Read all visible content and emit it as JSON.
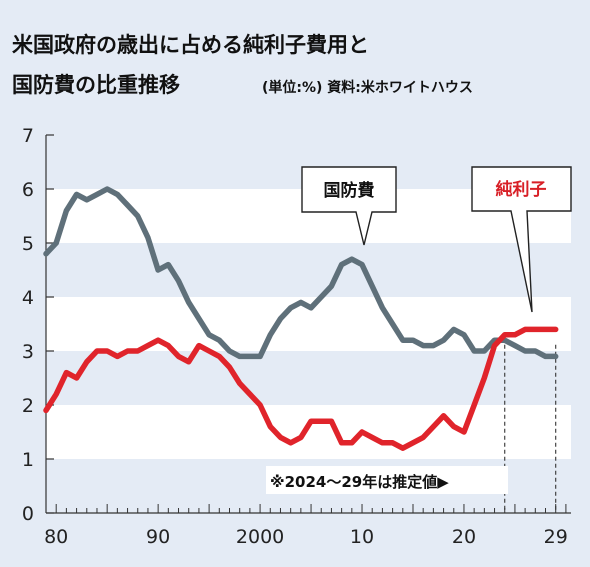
{
  "header": {
    "title_line1": "米国政府の歳出に占める純利子費用と",
    "title_line2": "国防費の比重推移",
    "unit_source": "(単位:%) 資料:米ホワイトハウス"
  },
  "note": "※2024～29年は推定値▶",
  "colors": {
    "background": "#e4ebf5",
    "band": "#ffffff",
    "defense": "#5f707a",
    "interest": "#e0242b",
    "label_red": "#d81f26"
  },
  "chart_data": {
    "type": "line",
    "x_tick_labels": [
      "80",
      "90",
      "2000",
      "10",
      "20",
      "29"
    ],
    "x_tick_values": [
      1980,
      1990,
      2000,
      2010,
      2020,
      2029
    ],
    "xlim": [
      1979,
      2030.5
    ],
    "y_ticks": [
      0,
      1,
      2,
      3,
      4,
      5,
      6,
      7
    ],
    "ylim": [
      0,
      7
    ],
    "estimate_start_year": 2024,
    "grid": "alternating horizontal bands",
    "x": [
      1979,
      1980,
      1981,
      1982,
      1983,
      1984,
      1985,
      1986,
      1987,
      1988,
      1989,
      1990,
      1991,
      1992,
      1993,
      1994,
      1995,
      1996,
      1997,
      1998,
      1999,
      2000,
      2001,
      2002,
      2003,
      2004,
      2005,
      2006,
      2007,
      2008,
      2009,
      2010,
      2011,
      2012,
      2013,
      2014,
      2015,
      2016,
      2017,
      2018,
      2019,
      2020,
      2021,
      2022,
      2023,
      2024,
      2025,
      2026,
      2027,
      2028,
      2029
    ],
    "series": [
      {
        "name": "国防費",
        "color": "#5f707a",
        "values": [
          4.8,
          5.0,
          5.6,
          5.9,
          5.8,
          5.9,
          6.0,
          5.9,
          5.7,
          5.5,
          5.1,
          4.5,
          4.6,
          4.3,
          3.9,
          3.6,
          3.3,
          3.2,
          3.0,
          2.9,
          2.9,
          2.9,
          3.3,
          3.6,
          3.8,
          3.9,
          3.8,
          4.0,
          4.2,
          4.6,
          4.7,
          4.6,
          4.2,
          3.8,
          3.5,
          3.2,
          3.2,
          3.1,
          3.1,
          3.2,
          3.4,
          3.3,
          3.0,
          3.0,
          3.2,
          3.2,
          3.1,
          3.0,
          3.0,
          2.9,
          2.9
        ]
      },
      {
        "name": "純利子",
        "color": "#e0242b",
        "values": [
          1.9,
          2.2,
          2.6,
          2.5,
          2.8,
          3.0,
          3.0,
          2.9,
          3.0,
          3.0,
          3.1,
          3.2,
          3.1,
          2.9,
          2.8,
          3.1,
          3.0,
          2.9,
          2.7,
          2.4,
          2.2,
          2.0,
          1.6,
          1.4,
          1.3,
          1.4,
          1.7,
          1.7,
          1.7,
          1.3,
          1.3,
          1.5,
          1.4,
          1.3,
          1.3,
          1.2,
          1.3,
          1.4,
          1.6,
          1.8,
          1.6,
          1.5,
          2.0,
          2.5,
          3.1,
          3.3,
          3.3,
          3.4,
          3.4,
          3.4,
          3.4
        ]
      }
    ]
  }
}
